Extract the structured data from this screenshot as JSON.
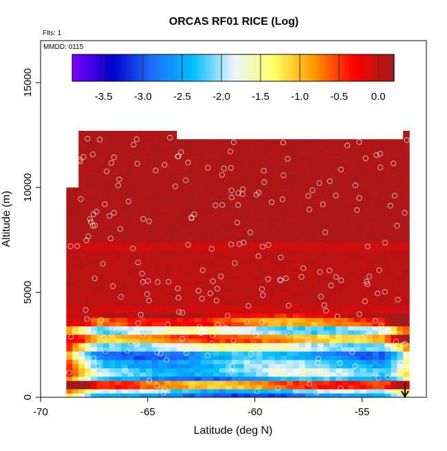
{
  "chart_data": {
    "type": "heatmap",
    "title": "ORCAS RF01 RICE (Log)",
    "flights_label": "Flts: 1",
    "date_label": "MMDD: 0115",
    "xlabel": "Latitude (deg N)",
    "ylabel": "Altitude (m)",
    "xlim": [
      -70,
      -52
    ],
    "ylim": [
      0,
      17000
    ],
    "x_ticks": [
      -70,
      -65,
      -60,
      -55
    ],
    "x_tick_labels": [
      "-70",
      "-65",
      "-60",
      "-55"
    ],
    "y_ticks": [
      0,
      5000,
      10000,
      15000
    ],
    "y_tick_labels": [
      "0",
      "5000",
      "10000",
      "15000"
    ],
    "colorbar": {
      "range": [
        -3.9,
        0.2
      ],
      "ticks": [
        -3.5,
        -3.0,
        -2.5,
        -2.0,
        -1.5,
        -1.0,
        -0.5,
        0.0
      ],
      "tick_labels": [
        "-3.5",
        "-3.0",
        "-2.5",
        "-2.0",
        "-1.5",
        "-1.0",
        "-0.5",
        "0.0"
      ],
      "colors": [
        "#7f00ff",
        "#0000cc",
        "#1e6fff",
        "#00bfff",
        "#eaf4ff",
        "#ffff66",
        "#ff9900",
        "#ff0000",
        "#a01a1a"
      ]
    },
    "data_extent": {
      "lat": [
        -68.8,
        -52.8
      ],
      "alt": [
        0,
        12700
      ]
    },
    "layers": [
      {
        "alt_range": [
          0,
          200
        ],
        "value": -2.8
      },
      {
        "alt_range": [
          200,
          500
        ],
        "value": -2.2
      },
      {
        "alt_range": [
          500,
          800
        ],
        "value": -0.7
      },
      {
        "alt_range": [
          800,
          1100
        ],
        "value": -2.6
      },
      {
        "alt_range": [
          1100,
          1500
        ],
        "value": -2.1
      },
      {
        "alt_range": [
          1500,
          1900
        ],
        "value": -2.3
      },
      {
        "alt_range": [
          1900,
          2200
        ],
        "value": -2.6
      },
      {
        "alt_range": [
          2200,
          2600
        ],
        "value": -1.8
      },
      {
        "alt_range": [
          2600,
          3000
        ],
        "value": -0.8
      },
      {
        "alt_range": [
          3000,
          3400
        ],
        "value": -1.9
      },
      {
        "alt_range": [
          3400,
          3800
        ],
        "value": -0.6
      },
      {
        "alt_range": [
          3800,
          4500
        ],
        "value": -0.05
      },
      {
        "alt_range": [
          4500,
          7000
        ],
        "value": 0.05
      },
      {
        "alt_range": [
          7000,
          7500
        ],
        "value": -0.05
      },
      {
        "alt_range": [
          7500,
          12700
        ],
        "value": 0.12
      }
    ],
    "arrow_marker": {
      "lat": -53.0,
      "alt": 0
    }
  }
}
